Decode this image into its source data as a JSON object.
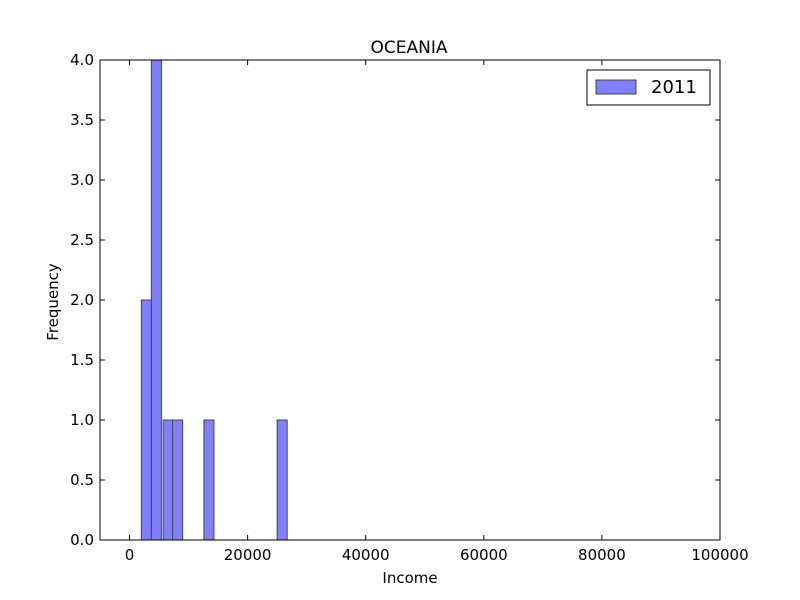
{
  "chart_data": {
    "type": "bar",
    "title": "OCEANIA",
    "xlabel": "Income",
    "ylabel": "Frequency",
    "xlim": [
      -5000,
      100000
    ],
    "ylim": [
      0,
      4.0
    ],
    "xticks": [
      0,
      20000,
      40000,
      60000,
      80000,
      100000
    ],
    "yticks": [
      "0.0",
      "0.5",
      "1.0",
      "1.5",
      "2.0",
      "2.5",
      "3.0",
      "3.5",
      "4.0"
    ],
    "bin_width": 1700,
    "series": [
      {
        "name": "2011",
        "color": "#8080ff",
        "bins": [
          {
            "start": 2000,
            "count": 2
          },
          {
            "start": 3700,
            "count": 4
          },
          {
            "start": 5700,
            "count": 1
          },
          {
            "start": 7300,
            "count": 1
          },
          {
            "start": 12600,
            "count": 1
          },
          {
            "start": 25000,
            "count": 1
          }
        ]
      }
    ],
    "legend": {
      "position": "top-right"
    }
  }
}
